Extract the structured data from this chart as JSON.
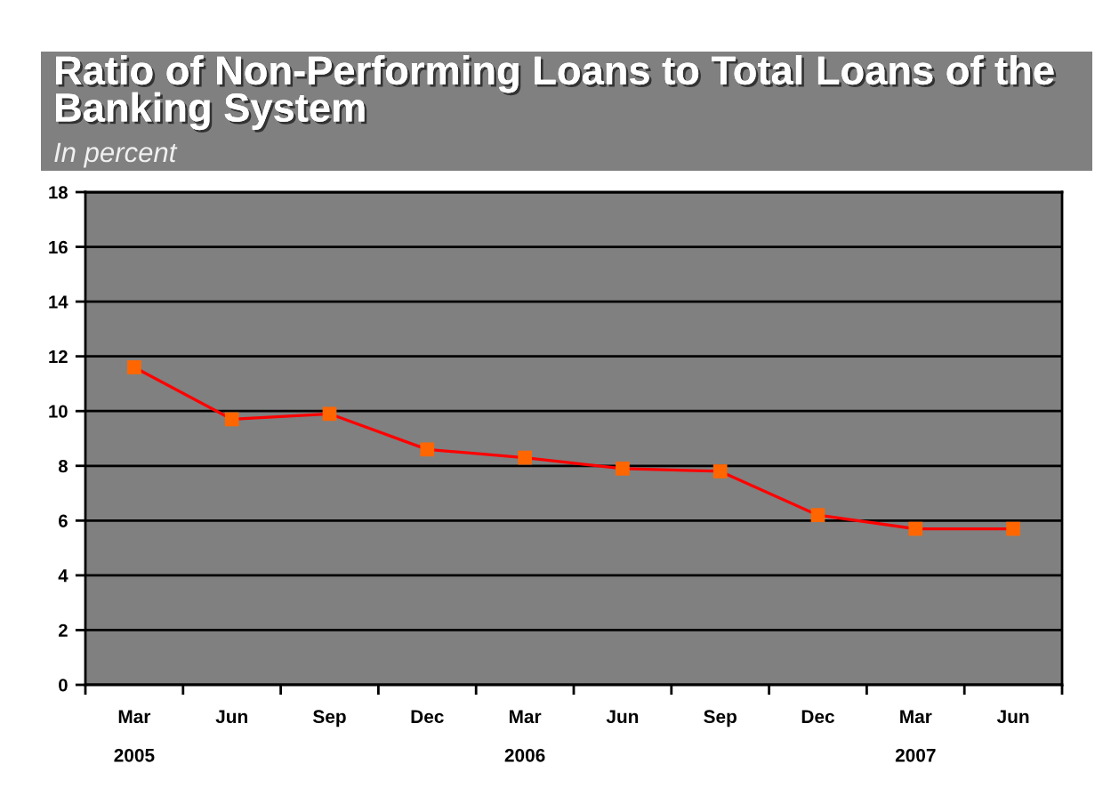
{
  "chart_data": {
    "type": "line",
    "title": "Ratio of Non-Performing Loans to Total Loans of the Banking System",
    "subtitle": "In percent",
    "categories": [
      "Mar\n2005",
      "Jun",
      "Sep",
      "Dec",
      "Mar\n2006",
      "Jun",
      "Sep",
      "Dec",
      "Mar\n2007",
      "Jun"
    ],
    "series": [
      {
        "color": "#ff0000",
        "colors": [
          "#ff6600",
          "#ff6600",
          "#ff6600",
          "#ff6600",
          "#ff6600",
          "#ff6600",
          "#ff6600",
          "#ff6600",
          "#ff6600",
          "#ff6600"
        ],
        "values": [
          11.6,
          9.7,
          9.9,
          8.6,
          8.3,
          7.9,
          7.8,
          6.2,
          5.7,
          5.7
        ]
      }
    ],
    "ylim": [
      0,
      18
    ],
    "yticks": [
      0,
      2,
      4,
      6,
      8,
      10,
      12,
      14,
      16,
      18
    ],
    "grid": "y",
    "marker": "square",
    "line_style": "solid"
  }
}
